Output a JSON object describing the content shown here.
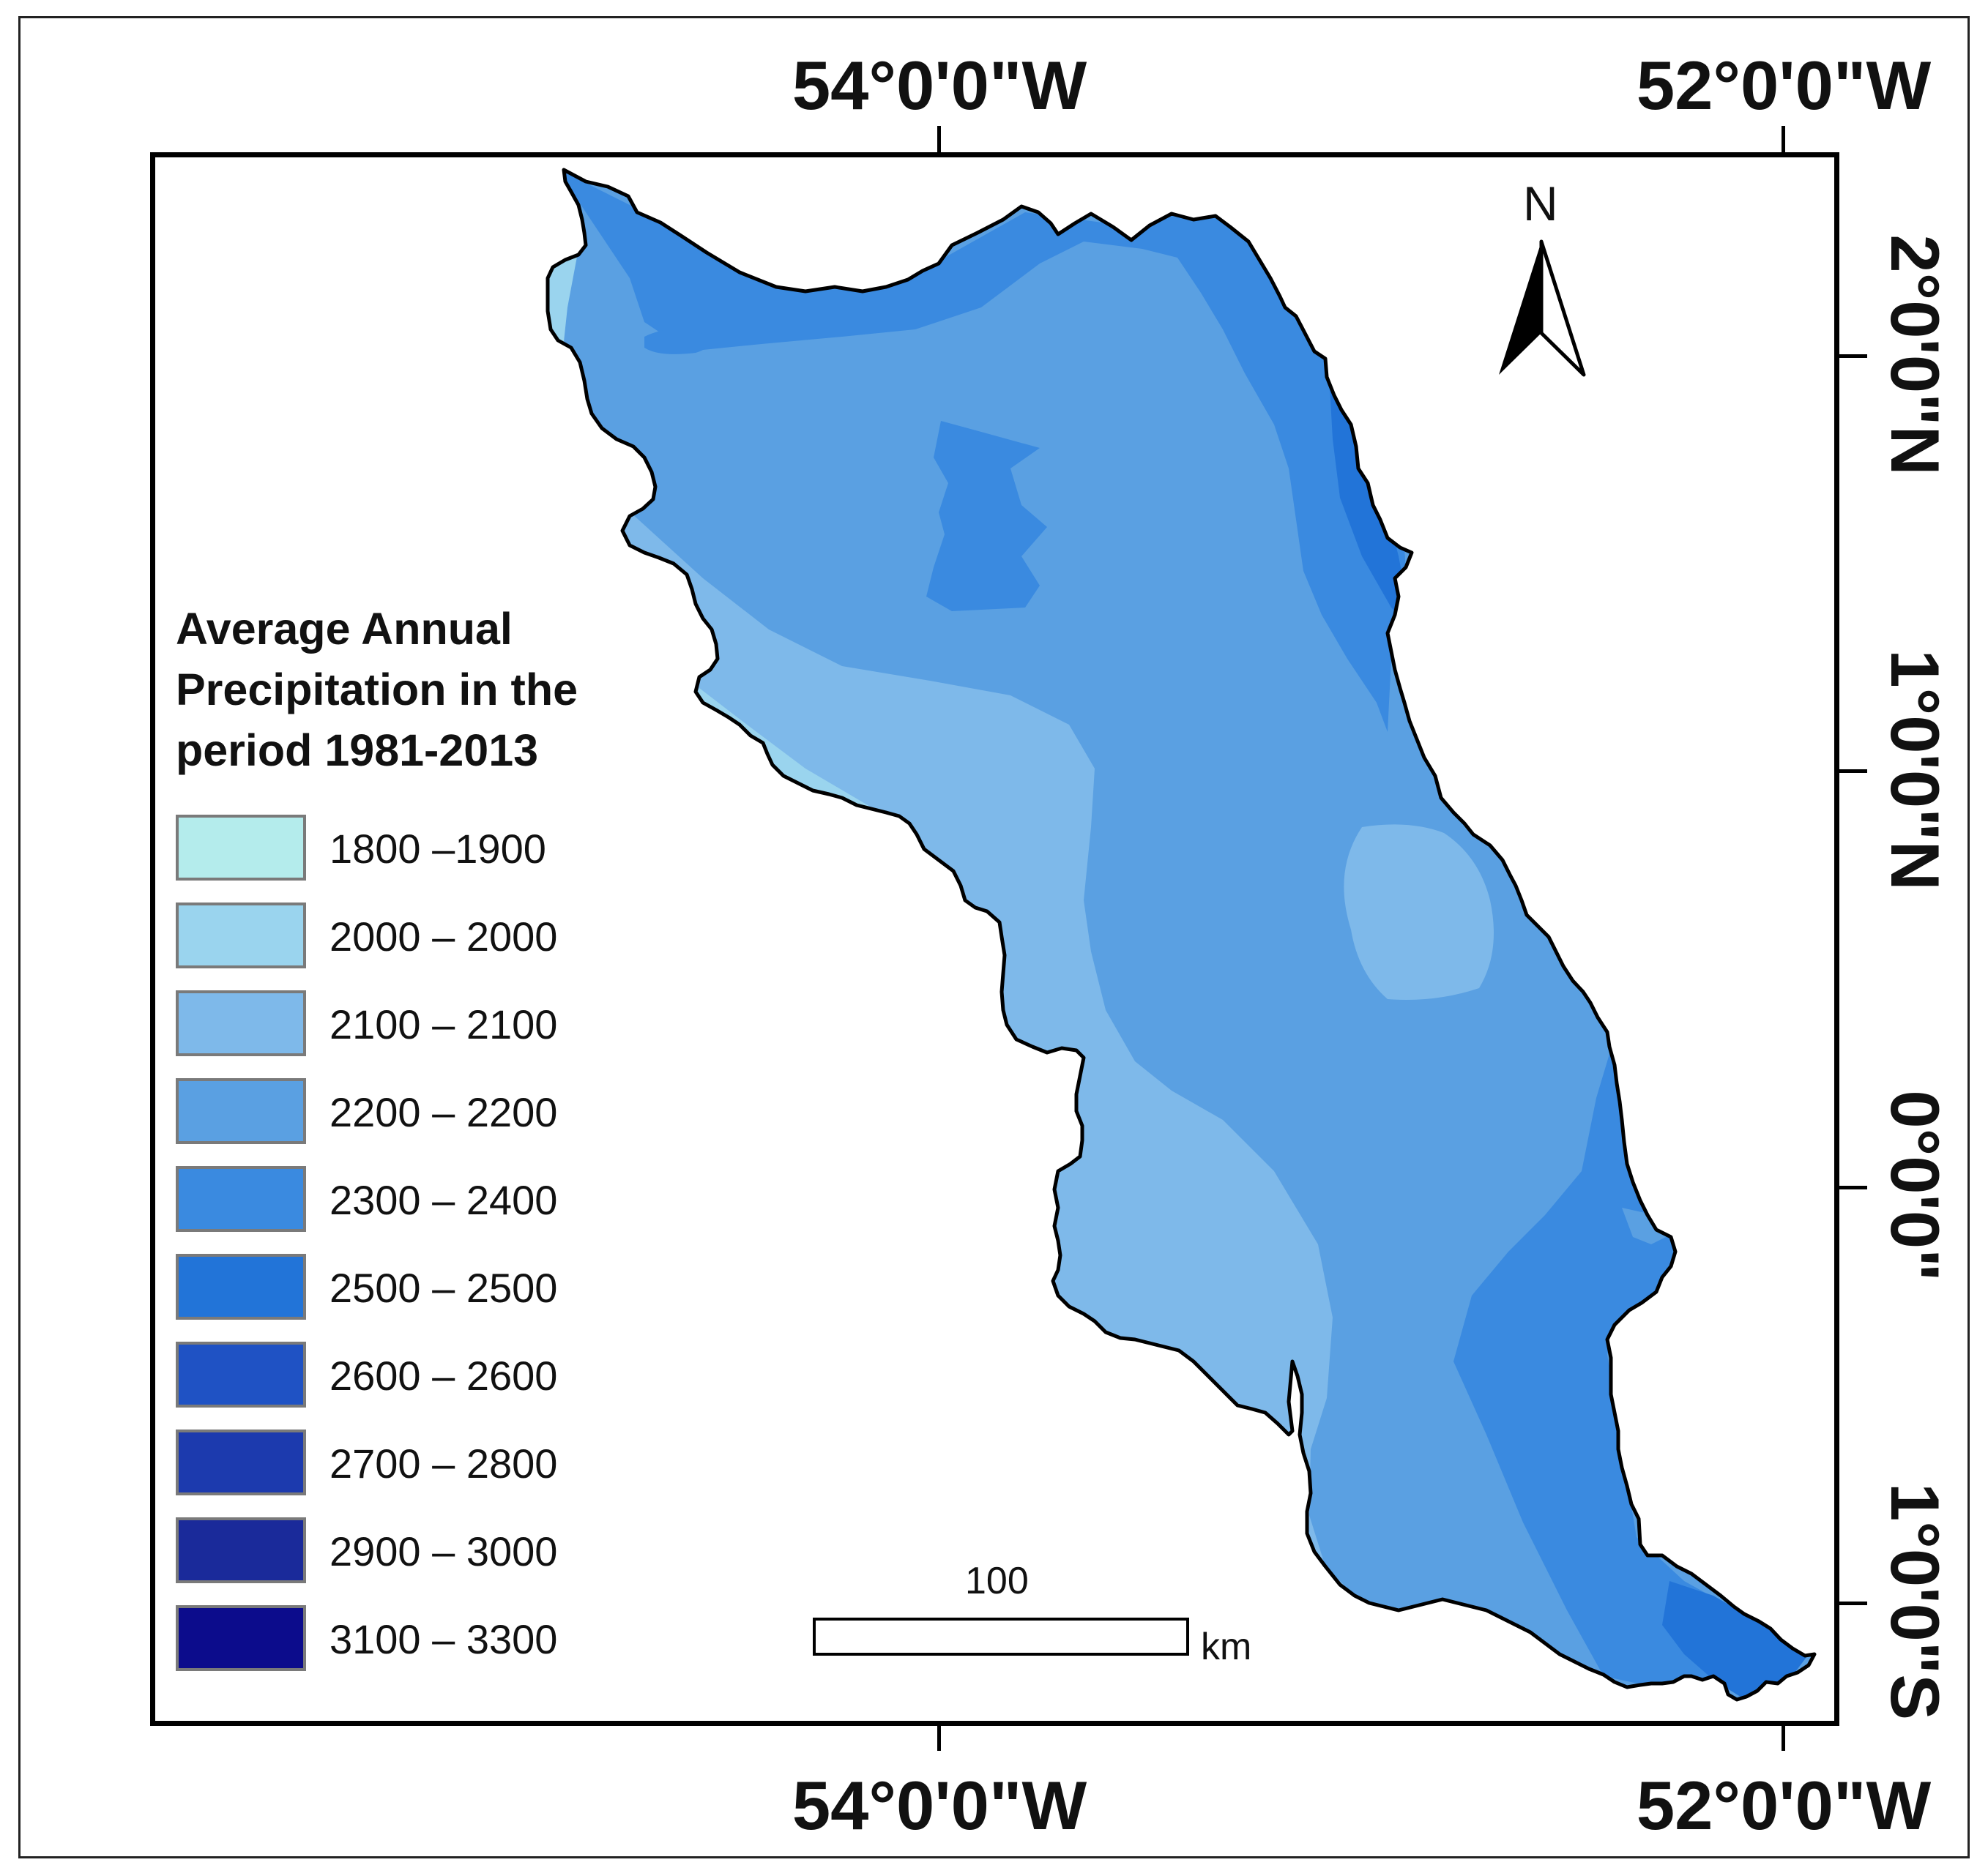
{
  "map": {
    "legend": {
      "title_lines": [
        "Average Annual",
        "Precipitation in the",
        "period 1981-2013"
      ],
      "classes": [
        {
          "label": "1800 –1900",
          "color": "#b4ecec"
        },
        {
          "label": "2000 – 2000",
          "color": "#9ad4ee"
        },
        {
          "label": "2100 – 2100",
          "color": "#7eb9ea"
        },
        {
          "label": "2200 – 2200",
          "color": "#5aa0e2"
        },
        {
          "label": "2300 – 2400",
          "color": "#3a8ae0"
        },
        {
          "label": "2500 – 2500",
          "color": "#2274d8"
        },
        {
          "label": "2600 – 2600",
          "color": "#1f52c4"
        },
        {
          "label": "2700 – 2800",
          "color": "#1c3aae"
        },
        {
          "label": "2900 – 3000",
          "color": "#1a2a9a"
        },
        {
          "label": "3100 – 3300",
          "color": "#0c0c8c"
        }
      ]
    },
    "coordinates": {
      "top_left": "54°0'0\"W",
      "top_right": "52°0'0\"W",
      "bottom_left": "54°0'0\"W",
      "bottom_right": "52°0'0\"W",
      "lat_2n": "2°0'0\"N",
      "lat_1n": "1°0'0\"N",
      "lat_0": "0°0'0\"",
      "lat_1s": "1°0'0\"S"
    },
    "north_arrow": {
      "label": "N",
      "icon": "north-arrow-icon"
    },
    "scale_bar": {
      "value": "100",
      "unit": "km"
    }
  }
}
